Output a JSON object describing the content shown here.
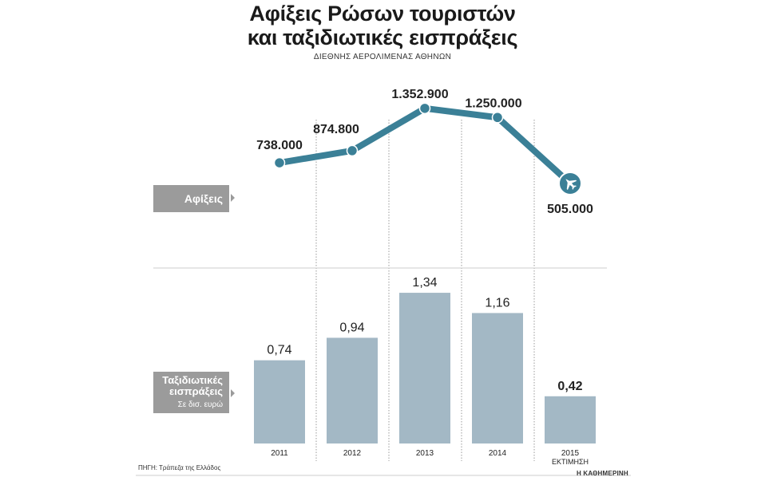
{
  "title_line1": "Αφίξεις Ρώσων τουριστών",
  "title_line2": "και ταξιδιωτικές εισπράξεις",
  "subtitle": "ΔΙΕΘΝΗΣ ΑΕΡΟΛΙΜΕΝΑΣ ΑΘΗΝΩΝ",
  "arrivals_tag": "Αφίξεις",
  "receipts_tag_line1": "Ταξιδιωτικές",
  "receipts_tag_line2": "εισπράξεις",
  "receipts_unit": "Σε δισ. ευρώ",
  "source": "ΠΗΓΗ: Τράπεζα της Ελλάδος",
  "brand": "Η ΚΑΘΗΜΕΡΙΝΗ",
  "colors": {
    "line": "#3b8097",
    "bars": "#a3b8c5",
    "tag": "#9b9b9b",
    "divider": "#cccccc"
  },
  "chart_data": [
    {
      "type": "line",
      "name": "Αφίξεις",
      "x": [
        "2011",
        "2012",
        "2013",
        "2014",
        "2015"
      ],
      "values": [
        738000,
        874800,
        1352900,
        1250000,
        505000
      ],
      "labels": [
        "738.000",
        "874.800",
        "1.352.900",
        "1.250.000",
        "505.000"
      ],
      "last_point_marker": "airplane-icon"
    },
    {
      "type": "bar",
      "name": "Ταξιδιωτικές εισπράξεις",
      "unit": "Σε δισ. ευρώ",
      "categories": [
        "2011",
        "2012",
        "2013",
        "2014",
        "2015"
      ],
      "category_sublabels": [
        "",
        "",
        "",
        "",
        "ΕΚΤΙΜΗΣΗ"
      ],
      "values": [
        0.74,
        0.94,
        1.34,
        1.16,
        0.42
      ],
      "labels": [
        "0,74",
        "0,94",
        "1,34",
        "1,16",
        "0,42"
      ],
      "bold_label_index": 4
    }
  ]
}
